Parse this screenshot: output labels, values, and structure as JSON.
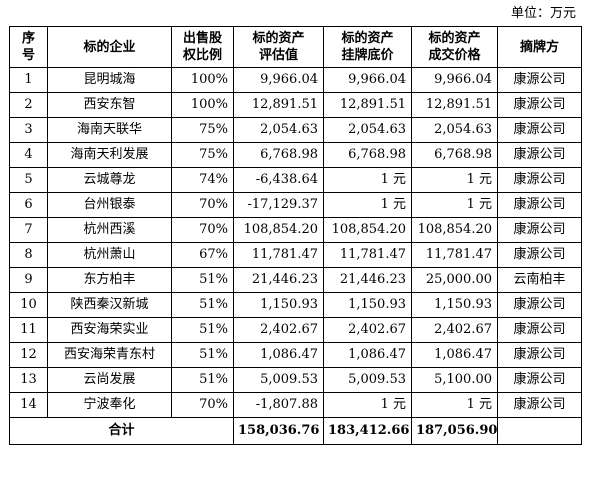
{
  "unit_label": "单位：万元",
  "headers": {
    "seq": [
      "序",
      "号"
    ],
    "company": "标的企业",
    "ratio": [
      "出售股",
      "权比例"
    ],
    "valuation": [
      "标的资产",
      "评估值"
    ],
    "listing": [
      "标的资产",
      "挂牌底价"
    ],
    "deal": [
      "标的资产",
      "成交价格"
    ],
    "buyer": "摘牌方"
  },
  "rows": [
    {
      "no": "1",
      "company": "昆明城海",
      "ratio": "100%",
      "valuation": "9,966.04",
      "listing": "9,966.04",
      "deal": "9,966.04",
      "buyer": "康源公司"
    },
    {
      "no": "2",
      "company": "西安东智",
      "ratio": "100%",
      "valuation": "12,891.51",
      "listing": "12,891.51",
      "deal": "12,891.51",
      "buyer": "康源公司"
    },
    {
      "no": "3",
      "company": "海南天联华",
      "ratio": "75%",
      "valuation": "2,054.63",
      "listing": "2,054.63",
      "deal": "2,054.63",
      "buyer": "康源公司"
    },
    {
      "no": "4",
      "company": "海南天利发展",
      "ratio": "75%",
      "valuation": "6,768.98",
      "listing": "6,768.98",
      "deal": "6,768.98",
      "buyer": "康源公司"
    },
    {
      "no": "5",
      "company": "云城尊龙",
      "ratio": "74%",
      "valuation": "-6,438.64",
      "listing": "1 元",
      "deal": "1 元",
      "buyer": "康源公司"
    },
    {
      "no": "6",
      "company": "台州银泰",
      "ratio": "70%",
      "valuation": "-17,129.37",
      "listing": "1 元",
      "deal": "1 元",
      "buyer": "康源公司"
    },
    {
      "no": "7",
      "company": "杭州西溪",
      "ratio": "70%",
      "valuation": "108,854.20",
      "listing": "108,854.20",
      "deal": "108,854.20",
      "buyer": "康源公司"
    },
    {
      "no": "8",
      "company": "杭州萧山",
      "ratio": "67%",
      "valuation": "11,781.47",
      "listing": "11,781.47",
      "deal": "11,781.47",
      "buyer": "康源公司"
    },
    {
      "no": "9",
      "company": "东方柏丰",
      "ratio": "51%",
      "valuation": "21,446.23",
      "listing": "21,446.23",
      "deal": "25,000.00",
      "buyer": "云南柏丰"
    },
    {
      "no": "10",
      "company": "陕西秦汉新城",
      "ratio": "51%",
      "valuation": "1,150.93",
      "listing": "1,150.93",
      "deal": "1,150.93",
      "buyer": "康源公司"
    },
    {
      "no": "11",
      "company": "西安海荣实业",
      "ratio": "51%",
      "valuation": "2,402.67",
      "listing": "2,402.67",
      "deal": "2,402.67",
      "buyer": "康源公司"
    },
    {
      "no": "12",
      "company": "西安海荣青东村",
      "ratio": "51%",
      "valuation": "1,086.47",
      "listing": "1,086.47",
      "deal": "1,086.47",
      "buyer": "康源公司"
    },
    {
      "no": "13",
      "company": "云尚发展",
      "ratio": "51%",
      "valuation": "5,009.53",
      "listing": "5,009.53",
      "deal": "5,100.00",
      "buyer": "康源公司"
    },
    {
      "no": "14",
      "company": "宁波奉化",
      "ratio": "70%",
      "valuation": "-1,807.88",
      "listing": "1 元",
      "deal": "1 元",
      "buyer": "康源公司"
    }
  ],
  "total": {
    "label": "合计",
    "valuation": "158,036.76",
    "listing": "183,412.66",
    "deal": "187,056.90"
  }
}
